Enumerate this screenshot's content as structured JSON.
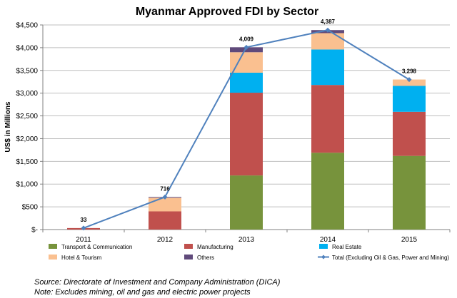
{
  "chart_data": {
    "type": "bar",
    "stacked": true,
    "title": "Myanmar Approved FDI by Sector",
    "ylabel": "US$ in Millions",
    "xlabel": "",
    "categories": [
      "2011",
      "2012",
      "2013",
      "2014",
      "2015"
    ],
    "ylim": [
      0,
      4500
    ],
    "yticks": [
      0,
      500,
      1000,
      1500,
      2000,
      2500,
      3000,
      3500,
      4000,
      4500
    ],
    "ytick_labels": [
      "$-",
      "$500",
      "$1,000",
      "$1,500",
      "$2,000",
      "$2,500",
      "$3,000",
      "$3,500",
      "$4,000",
      "$4,500"
    ],
    "grid": true,
    "legend_position": "bottom",
    "series": [
      {
        "name": "Transport & Communication",
        "color": "#77933c",
        "values": [
          0,
          0,
          1190,
          1690,
          1620
        ]
      },
      {
        "name": "Manufacturing",
        "color": "#c0504d",
        "values": [
          33,
          400,
          1820,
          1490,
          970
        ]
      },
      {
        "name": "Real Estate",
        "color": "#00b0f0",
        "values": [
          0,
          0,
          440,
          780,
          570
        ]
      },
      {
        "name": "Hotel & Tourism",
        "color": "#fac090",
        "values": [
          0,
          300,
          450,
          360,
          140
        ]
      },
      {
        "name": "Others",
        "color": "#604a7b",
        "values": [
          0,
          16,
          109,
          67,
          0
        ]
      }
    ],
    "line_series": {
      "name": "Total (Excluding Oil & Gas, Power and Mining)",
      "color": "#4f81bd",
      "values": [
        33,
        716,
        4009,
        4387,
        3298
      ],
      "labels": [
        "33",
        "716",
        "4,009",
        "4,387",
        "3,298"
      ]
    }
  },
  "footnotes": {
    "source": "Source: Directorate of Investment and Company Administration (DICA)",
    "note": "Note: Excludes mining, oil and gas and electric power projects"
  }
}
